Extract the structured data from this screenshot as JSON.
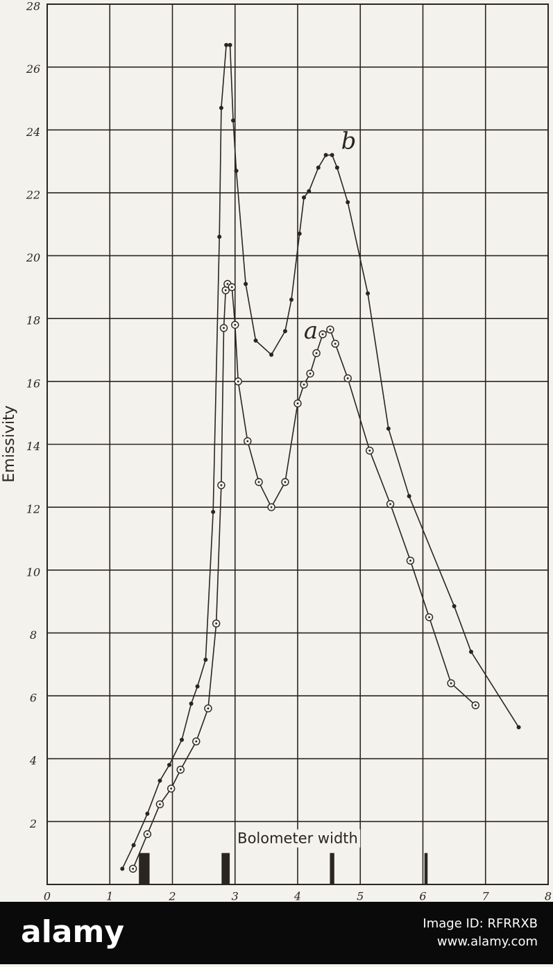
{
  "chart_data": {
    "type": "line",
    "y_label": "Emissivity",
    "xlim": [
      0,
      8
    ],
    "xticks": [
      0,
      1,
      2,
      3,
      4,
      5,
      6,
      7,
      8
    ],
    "ylim": [
      0,
      28
    ],
    "yticks": [
      2,
      4,
      6,
      8,
      10,
      12,
      14,
      16,
      18,
      20,
      22,
      24,
      26,
      28
    ],
    "grid": true,
    "series": [
      {
        "name": "a",
        "marker": "circle",
        "color": "#2a2522",
        "x": [
          1.37,
          1.6,
          1.8,
          1.98,
          2.13,
          2.38,
          2.57,
          2.7,
          2.78,
          2.82,
          2.85,
          2.88,
          2.95,
          3.0,
          3.05,
          3.2,
          3.38,
          3.58,
          3.8,
          4.0,
          4.1,
          4.2,
          4.3,
          4.4,
          4.52,
          4.6,
          4.8,
          5.15,
          5.48,
          5.8,
          6.1,
          6.45,
          6.84
        ],
        "values": [
          0.5,
          1.6,
          2.55,
          3.05,
          3.65,
          4.55,
          5.6,
          8.3,
          12.7,
          17.7,
          18.9,
          19.1,
          19.0,
          17.8,
          16.0,
          14.1,
          12.8,
          12.0,
          12.8,
          15.3,
          15.9,
          16.25,
          16.9,
          17.5,
          17.65,
          17.2,
          16.1,
          13.8,
          12.1,
          10.3,
          8.5,
          6.4,
          5.7
        ]
      },
      {
        "name": "b",
        "marker": "dot",
        "color": "#2a2522",
        "x": [
          1.2,
          1.38,
          1.6,
          1.8,
          1.95,
          2.15,
          2.3,
          2.4,
          2.53,
          2.65,
          2.75,
          2.78,
          2.86,
          2.92,
          2.97,
          3.02,
          3.17,
          3.33,
          3.58,
          3.8,
          3.9,
          4.03,
          4.1,
          4.18,
          4.33,
          4.45,
          4.55,
          4.63,
          4.8,
          5.12,
          5.45,
          5.78,
          6.5,
          6.77,
          7.53
        ],
        "values": [
          0.5,
          1.25,
          2.25,
          3.3,
          3.8,
          4.6,
          5.75,
          6.3,
          7.15,
          11.85,
          20.6,
          24.7,
          26.7,
          26.7,
          24.3,
          22.7,
          19.1,
          17.3,
          16.85,
          17.6,
          18.6,
          20.7,
          21.85,
          22.05,
          22.8,
          23.2,
          23.2,
          22.8,
          21.7,
          18.8,
          14.5,
          12.35,
          8.85,
          7.4,
          5.0
        ]
      }
    ],
    "bolometer_label": "Bolometer width",
    "bolometer_bars": {
      "x": [
        1.55,
        2.85,
        4.55,
        6.05
      ],
      "widths": [
        0.17,
        0.13,
        0.07,
        0.05
      ],
      "heights": [
        1,
        1,
        1,
        1
      ]
    }
  },
  "watermark": {
    "logo": "alamy",
    "image_id": "Image ID: RFRRXB",
    "url": "www.alamy.com"
  }
}
